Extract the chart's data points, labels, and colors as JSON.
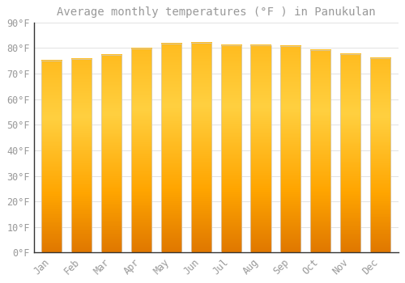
{
  "title": "Average monthly temperatures (°F ) in Panukulan",
  "months": [
    "Jan",
    "Feb",
    "Mar",
    "Apr",
    "May",
    "Jun",
    "Jul",
    "Aug",
    "Sep",
    "Oct",
    "Nov",
    "Dec"
  ],
  "values": [
    75.0,
    75.7,
    77.2,
    79.9,
    81.7,
    81.9,
    81.1,
    81.2,
    80.6,
    79.2,
    77.7,
    76.1
  ],
  "bar_color_top": "#FFB300",
  "bar_color_bottom": "#FF8C00",
  "bar_color_mid": "#FFC830",
  "bar_edge_color": "#DDDDDD",
  "background_color": "#FFFFFF",
  "grid_color": "#DDDDDD",
  "text_color": "#999999",
  "axis_color": "#333333",
  "ylim": [
    0,
    90
  ],
  "yticks": [
    0,
    10,
    20,
    30,
    40,
    50,
    60,
    70,
    80,
    90
  ],
  "title_fontsize": 10,
  "tick_fontsize": 8.5,
  "bar_width": 0.68
}
